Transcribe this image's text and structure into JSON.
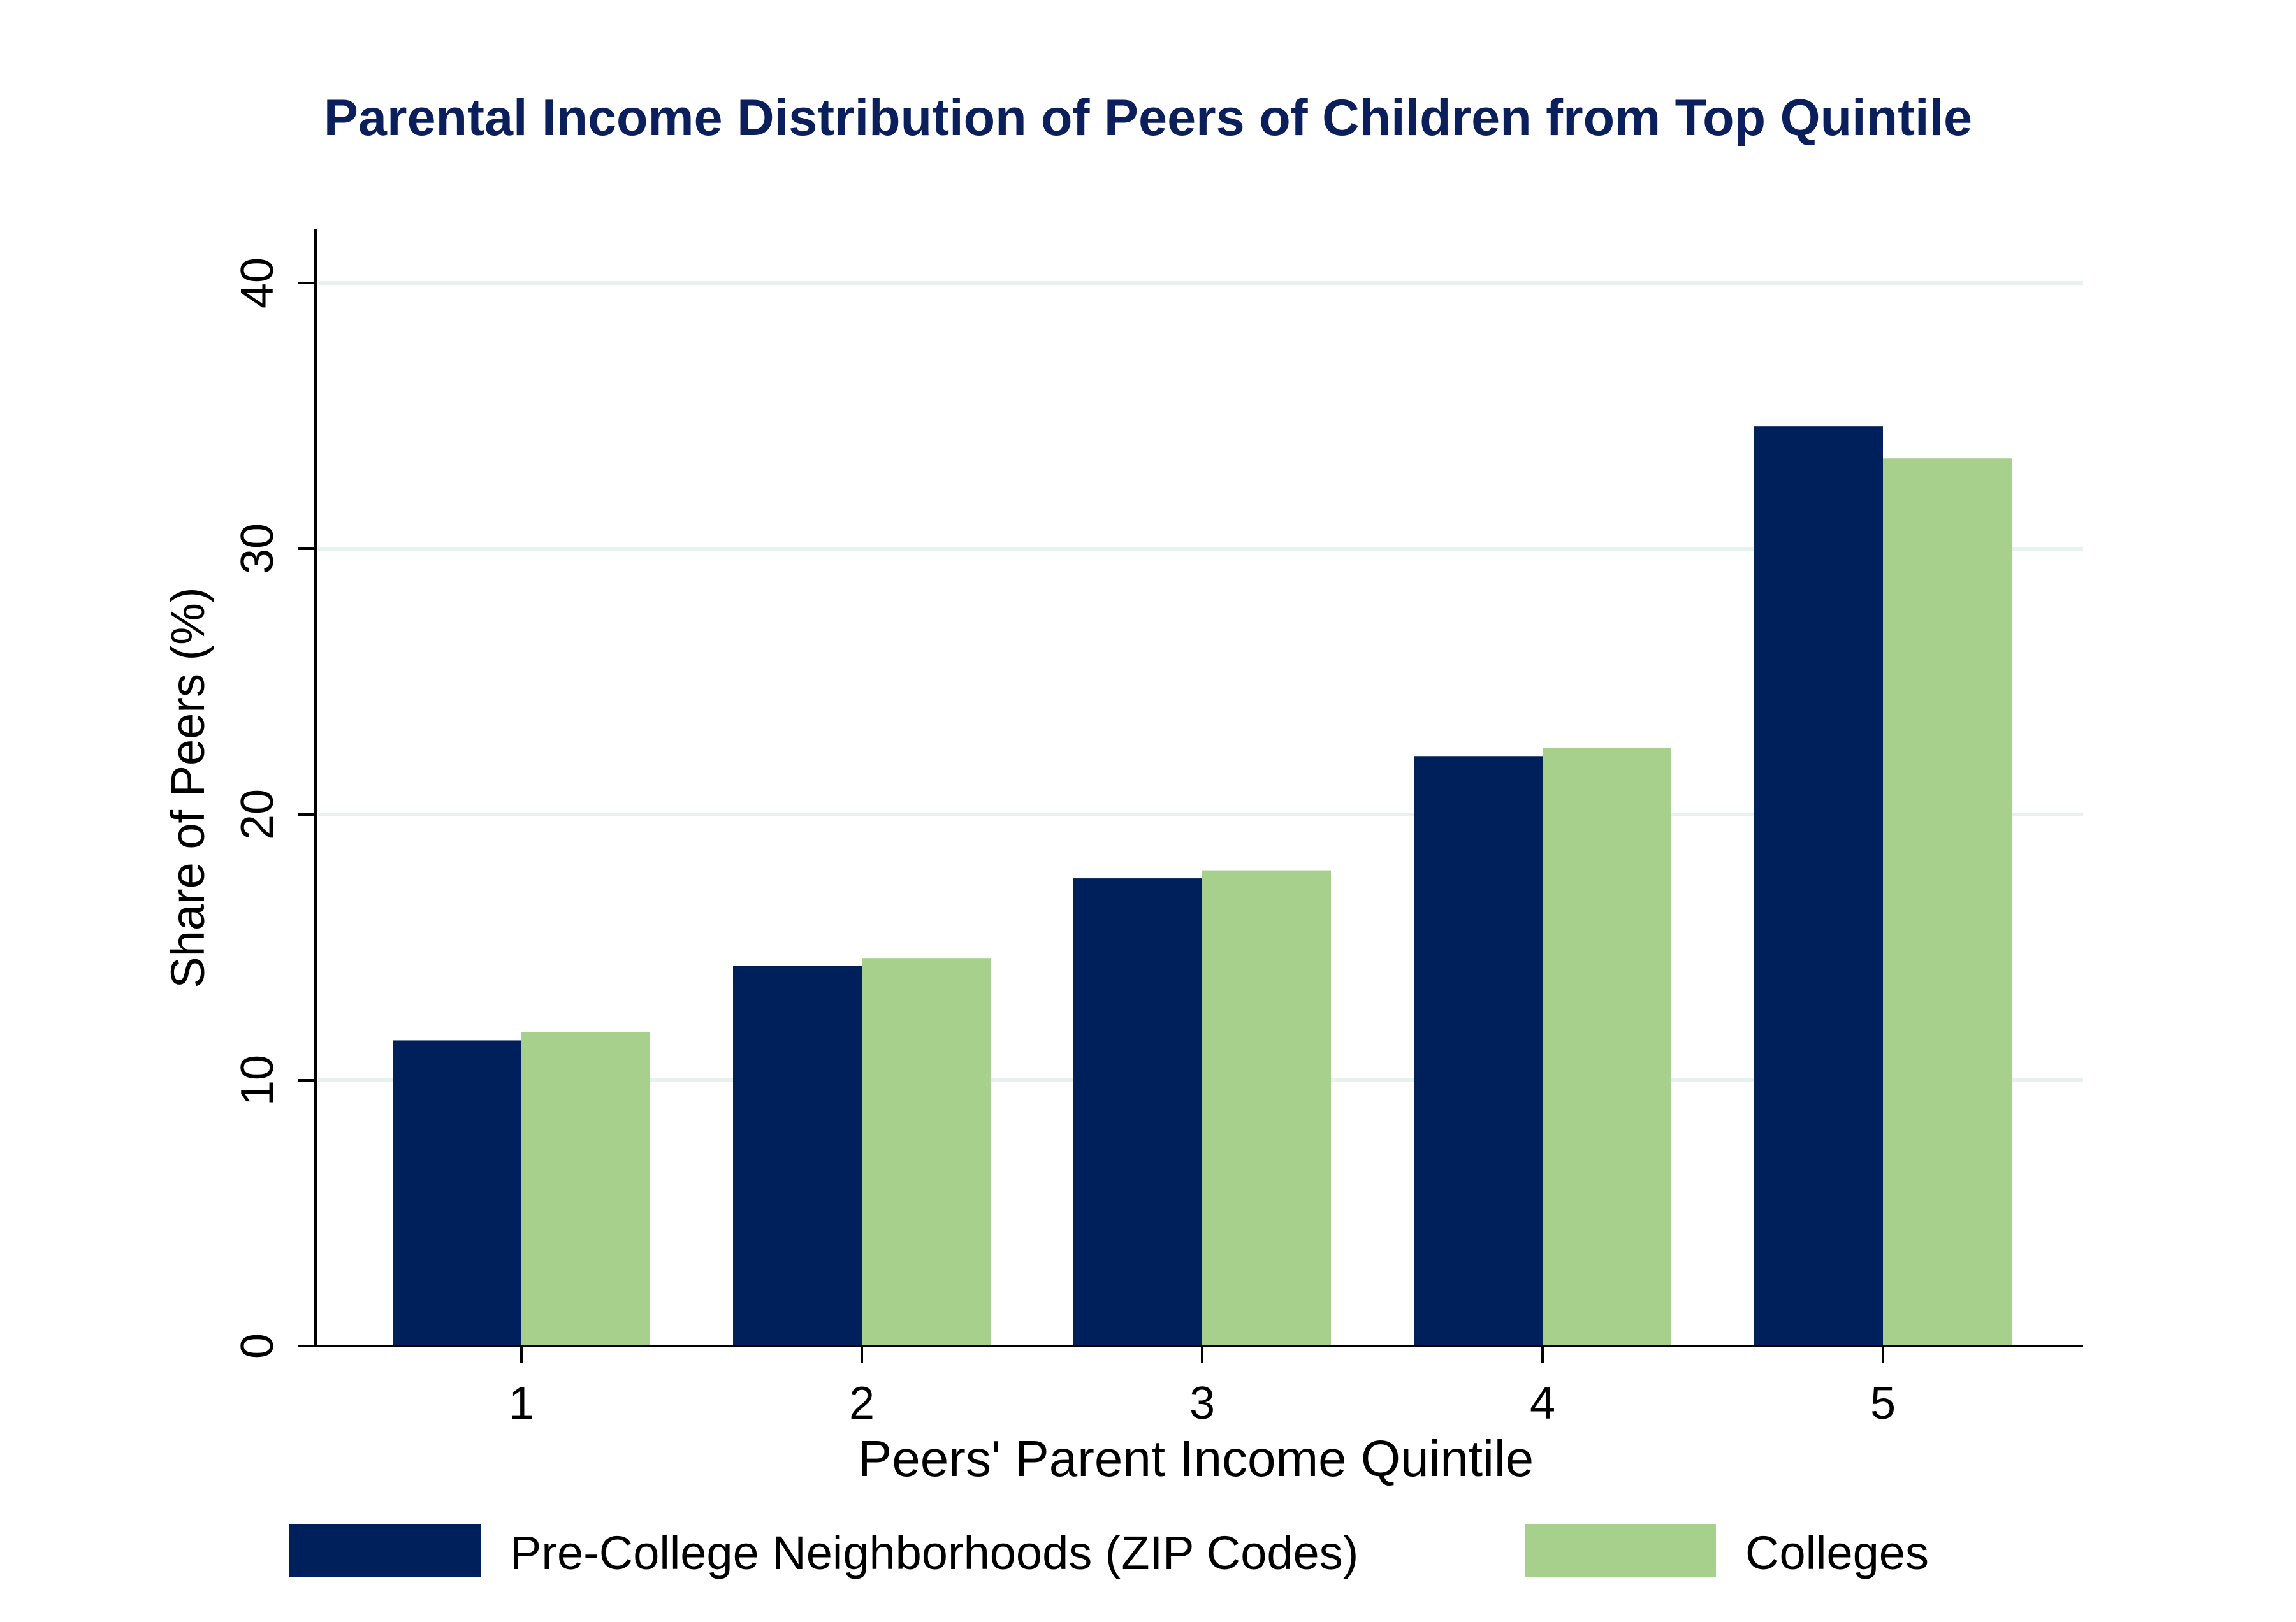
{
  "colors": {
    "series_1": "#00205b",
    "series_2": "#a8d08d",
    "title": "#0a1f5c",
    "grid": "#e8f0f0",
    "axis": "#000000"
  },
  "chart_data": {
    "type": "bar",
    "title": "Parental Income Distribution of Peers of Children from Top Quintile",
    "xlabel": "Peers' Parent Income Quintile",
    "ylabel": "Share of Peers (%)",
    "categories": [
      "1",
      "2",
      "3",
      "4",
      "5"
    ],
    "series": [
      {
        "name": "Pre-College Neighborhoods (ZIP Codes)",
        "values": [
          11.5,
          14.3,
          17.6,
          22.2,
          34.6
        ]
      },
      {
        "name": "Colleges",
        "values": [
          11.8,
          14.6,
          17.9,
          22.5,
          33.4
        ]
      }
    ],
    "ylim": [
      0,
      42
    ],
    "yticks": [
      0,
      10,
      20,
      30,
      40
    ],
    "grid": true,
    "legend_position": "bottom"
  }
}
